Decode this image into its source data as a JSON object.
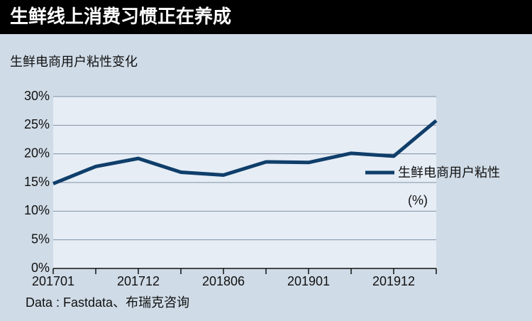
{
  "chart_data": {
    "type": "line",
    "title": "生鲜线上消费习惯正在养成",
    "subtitle": "生鲜电商用户粘性变化",
    "source": "Data : Fastdata、布瑞克咨询",
    "categories": [
      "201701",
      null,
      "201712",
      null,
      "201806",
      null,
      "201901",
      null,
      "201912",
      null
    ],
    "series": [
      {
        "name": "生鲜电商用户粘性",
        "unit": "(%)",
        "color": "#0f3e6a",
        "values": [
          14.8,
          17.8,
          19.2,
          16.8,
          16.3,
          18.6,
          18.5,
          20.1,
          19.6,
          25.8
        ]
      }
    ],
    "ylim": [
      0,
      30
    ],
    "yticks": [
      {
        "value": 0,
        "label": "0%"
      },
      {
        "value": 5,
        "label": "5%"
      },
      {
        "value": 10,
        "label": "10%"
      },
      {
        "value": 15,
        "label": "15%"
      },
      {
        "value": 20,
        "label": "20%"
      },
      {
        "value": 25,
        "label": "25%"
      },
      {
        "value": 30,
        "label": "30%"
      }
    ],
    "grid": true
  }
}
